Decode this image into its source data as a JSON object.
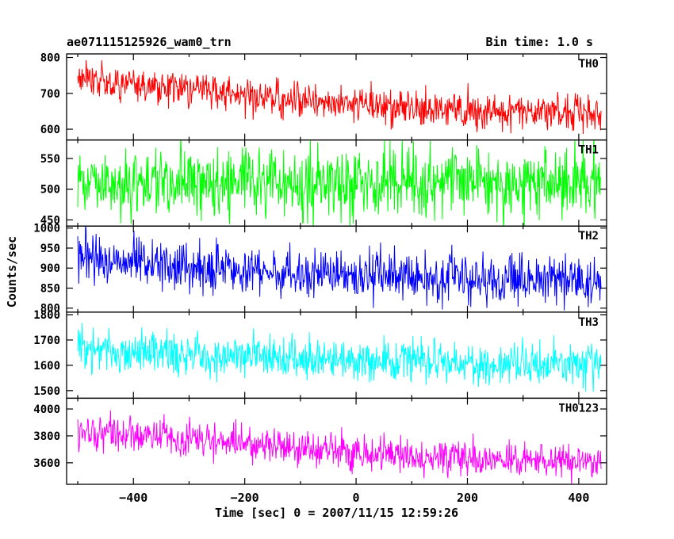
{
  "title": "ae071115125926_wam0_trn",
  "bin_time_label": "Bin time: 1.0 s",
  "colors": {
    "TH0": "#ff0000",
    "TH1": "#00ff00",
    "TH2": "#0000ff",
    "TH3": "#00ffff",
    "TH0123": "#ff00ff",
    "frame": "#000000"
  },
  "chart_data": {
    "type": "line",
    "xlabel": "Time [sec] 0 = 2007/11/15 12:59:26",
    "ylabel": "Counts/sec",
    "xlim": [
      -520,
      450
    ],
    "data_x_range": [
      -500,
      440
    ],
    "bin_time_s": 1.0,
    "x_ticks": [
      -400,
      -200,
      0,
      200,
      400
    ],
    "panels": [
      {
        "name": "TH0",
        "color": "#ff0000",
        "ylim": [
          570,
          810
        ],
        "y_ticks": [
          600,
          700,
          800
        ],
        "trend": [
          [
            -500,
            740
          ],
          [
            -300,
            710
          ],
          [
            -100,
            680
          ],
          [
            100,
            660
          ],
          [
            440,
            645
          ]
        ],
        "noise_sd": 25
      },
      {
        "name": "TH1",
        "color": "#00ff00",
        "ylim": [
          440,
          580
        ],
        "y_ticks": [
          450,
          500,
          550
        ],
        "trend": [
          [
            -500,
            510
          ],
          [
            0,
            510
          ],
          [
            440,
            510
          ]
        ],
        "noise_sd": 28
      },
      {
        "name": "TH2",
        "color": "#0000ff",
        "ylim": [
          790,
          1005
        ],
        "y_ticks": [
          800,
          850,
          900,
          950,
          1000
        ],
        "trend": [
          [
            -500,
            925
          ],
          [
            -200,
            895
          ],
          [
            0,
            880
          ],
          [
            440,
            865
          ]
        ],
        "noise_sd": 30
      },
      {
        "name": "TH3",
        "color": "#00ffff",
        "ylim": [
          1470,
          1810
        ],
        "y_ticks": [
          1500,
          1600,
          1700,
          1800
        ],
        "trend": [
          [
            -500,
            1660
          ],
          [
            -200,
            1635
          ],
          [
            0,
            1620
          ],
          [
            440,
            1600
          ]
        ],
        "noise_sd": 40
      },
      {
        "name": "TH0123",
        "color": "#ff00ff",
        "ylim": [
          3440,
          4080
        ],
        "y_ticks": [
          3600,
          3800,
          4000
        ],
        "trend": [
          [
            -500,
            3840
          ],
          [
            -300,
            3780
          ],
          [
            -100,
            3700
          ],
          [
            100,
            3640
          ],
          [
            440,
            3610
          ]
        ],
        "noise_sd": 65
      }
    ]
  }
}
